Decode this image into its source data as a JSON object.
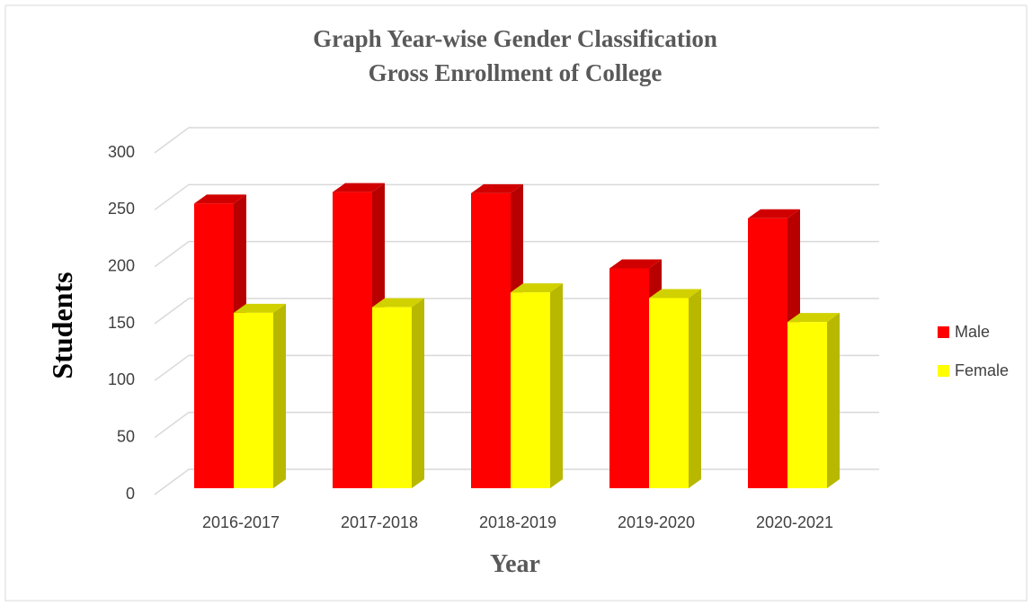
{
  "chart_data": {
    "type": "bar",
    "title": [
      "Graph Year-wise Gender Classification",
      "Gross Enrollment of College"
    ],
    "x_label": "Year",
    "y_label": "Students",
    "categories": [
      "2016-2017",
      "2017-2018",
      "2018-2019",
      "2019-2020",
      "2020-2021"
    ],
    "series": [
      {
        "name": "Male",
        "color": "#ff0000",
        "values": [
          250,
          260,
          259,
          193,
          237
        ]
      },
      {
        "name": "Female",
        "color": "#ffff00",
        "values": [
          154,
          159,
          172,
          167,
          146
        ]
      }
    ],
    "ylim": [
      0,
      300
    ],
    "yticks": [
      0,
      50,
      100,
      150,
      200,
      250,
      300
    ],
    "grid": true,
    "legend": "right",
    "style": "3d"
  }
}
